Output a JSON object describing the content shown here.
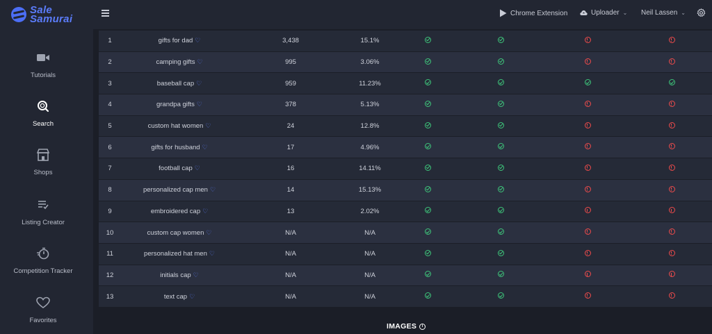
{
  "brand": {
    "line1": "Sale",
    "line2": "Samurai"
  },
  "sidebar": {
    "items": [
      {
        "label": "Tutorials",
        "icon": "video-camera-icon"
      },
      {
        "label": "Search",
        "icon": "search-icon",
        "active": true
      },
      {
        "label": "Shops",
        "icon": "shop-icon"
      },
      {
        "label": "Listing Creator",
        "icon": "list-edit-icon"
      },
      {
        "label": "Competition Tracker",
        "icon": "stopwatch-icon"
      },
      {
        "label": "Favorites",
        "icon": "heart-icon"
      }
    ]
  },
  "topbar": {
    "chrome_extension": "Chrome Extension",
    "uploader": "Uploader",
    "user": "Neil Lassen"
  },
  "colors": {
    "accent": "#5b7cfa",
    "ok": "#3ec77b",
    "bad": "#f04b4b"
  },
  "table": {
    "rows": [
      {
        "num": "1",
        "keyword": "gifts for dad",
        "volume": "3,438",
        "pct": "15.1%",
        "s1": "ok",
        "s2": "ok",
        "s3": "bad",
        "s4": "bad"
      },
      {
        "num": "2",
        "keyword": "camping gifts",
        "volume": "995",
        "pct": "3.06%",
        "s1": "ok",
        "s2": "ok",
        "s3": "bad",
        "s4": "bad"
      },
      {
        "num": "3",
        "keyword": "baseball cap",
        "volume": "959",
        "pct": "11.23%",
        "s1": "ok",
        "s2": "ok",
        "s3": "ok",
        "s4": "ok"
      },
      {
        "num": "4",
        "keyword": "grandpa gifts",
        "volume": "378",
        "pct": "5.13%",
        "s1": "ok",
        "s2": "ok",
        "s3": "bad",
        "s4": "bad"
      },
      {
        "num": "5",
        "keyword": "custom hat women",
        "volume": "24",
        "pct": "12.8%",
        "s1": "ok",
        "s2": "ok",
        "s3": "bad",
        "s4": "bad"
      },
      {
        "num": "6",
        "keyword": "gifts for husband",
        "volume": "17",
        "pct": "4.96%",
        "s1": "ok",
        "s2": "ok",
        "s3": "bad",
        "s4": "bad"
      },
      {
        "num": "7",
        "keyword": "football cap",
        "volume": "16",
        "pct": "14.11%",
        "s1": "ok",
        "s2": "ok",
        "s3": "bad",
        "s4": "bad"
      },
      {
        "num": "8",
        "keyword": "personalized cap men",
        "volume": "14",
        "pct": "15.13%",
        "s1": "ok",
        "s2": "ok",
        "s3": "bad",
        "s4": "bad"
      },
      {
        "num": "9",
        "keyword": "embroidered cap",
        "volume": "13",
        "pct": "2.02%",
        "s1": "ok",
        "s2": "ok",
        "s3": "bad",
        "s4": "bad"
      },
      {
        "num": "10",
        "keyword": "custom cap women",
        "volume": "N/A",
        "pct": "N/A",
        "s1": "ok",
        "s2": "ok",
        "s3": "bad",
        "s4": "bad"
      },
      {
        "num": "11",
        "keyword": "personalized hat men",
        "volume": "N/A",
        "pct": "N/A",
        "s1": "ok",
        "s2": "ok",
        "s3": "bad",
        "s4": "bad"
      },
      {
        "num": "12",
        "keyword": "initials cap",
        "volume": "N/A",
        "pct": "N/A",
        "s1": "ok",
        "s2": "ok",
        "s3": "bad",
        "s4": "bad"
      },
      {
        "num": "13",
        "keyword": "text cap",
        "volume": "N/A",
        "pct": "N/A",
        "s1": "ok",
        "s2": "ok",
        "s3": "bad",
        "s4": "bad"
      }
    ]
  },
  "section": {
    "images_heading": "IMAGES"
  }
}
